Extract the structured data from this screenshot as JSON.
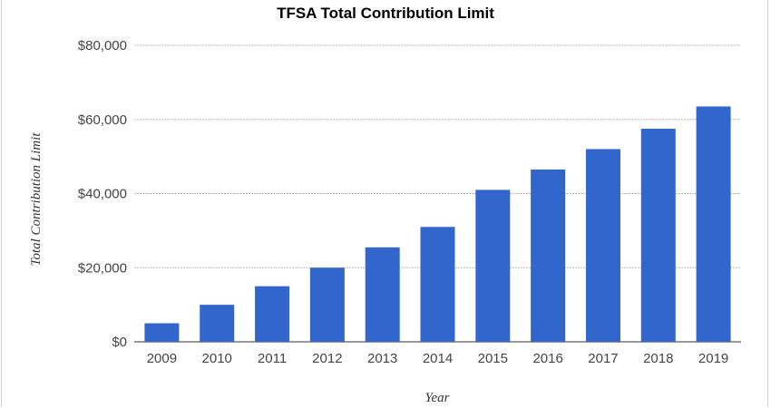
{
  "chart_data": {
    "type": "bar",
    "title": "TFSA Total Contribution Limit",
    "xlabel": "Year",
    "ylabel": "Total Contribution Limit",
    "categories": [
      "2009",
      "2010",
      "2011",
      "2012",
      "2013",
      "2014",
      "2015",
      "2016",
      "2017",
      "2018",
      "2019"
    ],
    "values": [
      5000,
      10000,
      15000,
      20000,
      25500,
      31000,
      41000,
      46500,
      52000,
      57500,
      63500
    ],
    "ylim": [
      0,
      80000
    ],
    "yticks": [
      0,
      20000,
      40000,
      60000,
      80000
    ],
    "ytick_labels": [
      "$0",
      "$20,000",
      "$40,000",
      "$60,000",
      "$80,000"
    ],
    "grid": true,
    "bar_color": "#3366cc"
  }
}
